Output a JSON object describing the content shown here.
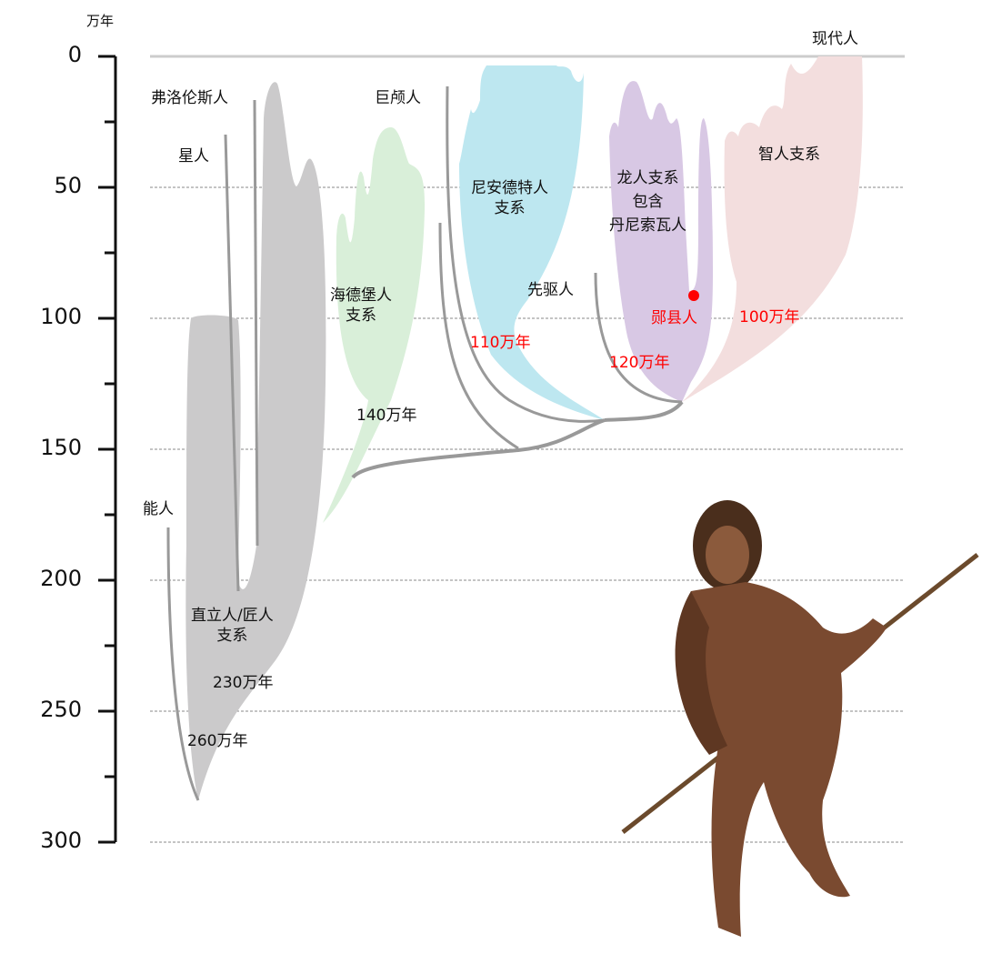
{
  "axis": {
    "unit": "万年",
    "ticks": [
      "0",
      "50",
      "100",
      "150",
      "200",
      "250",
      "300"
    ]
  },
  "lineages": {
    "habilis": "能人",
    "erectus": "直立人/匠人\n支系",
    "floresiensis": "弗洛伦斯人",
    "naledi": "星人",
    "heidelberg": "海德堡人\n支系",
    "longi_skull": "巨颅人",
    "neanderthal": "尼安德特人\n支系",
    "antecessor": "先驱人",
    "dragon": "龙人支系\n包含\n丹尼索瓦人",
    "yunxian": "郧县人",
    "sapiens": "智人支系",
    "modern": "现代人"
  },
  "dates": {
    "erectus_230": "230万年",
    "habilis_260": "260万年",
    "heidelberg_140": "140万年",
    "neanderthal_110": "110万年",
    "dragon_120": "120万年",
    "sapiens_100": "100万年"
  },
  "colors": {
    "erectus": "#cbcacb",
    "heidelberg": "#d9efd9",
    "neanderthal": "#bde7f0",
    "dragon": "#d8c8e4",
    "sapiens": "#f3dede",
    "branch": "#999999",
    "highlight": "#ff0000"
  }
}
